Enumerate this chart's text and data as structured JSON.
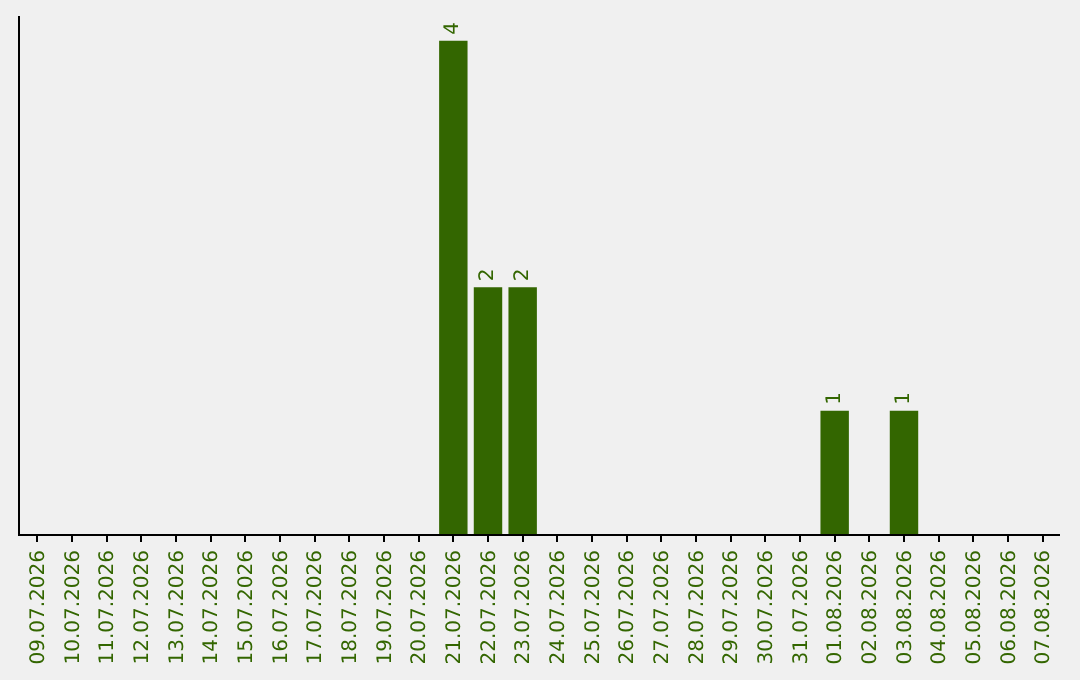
{
  "chart_data": {
    "type": "bar",
    "categories": [
      "09.07.2026",
      "10.07.2026",
      "11.07.2026",
      "12.07.2026",
      "13.07.2026",
      "14.07.2026",
      "15.07.2026",
      "16.07.2026",
      "17.07.2026",
      "18.07.2026",
      "19.07.2026",
      "20.07.2026",
      "21.07.2026",
      "22.07.2026",
      "23.07.2026",
      "24.07.2026",
      "25.07.2026",
      "26.07.2026",
      "27.07.2026",
      "28.07.2026",
      "29.07.2026",
      "30.07.2026",
      "31.07.2026",
      "01.08.2026",
      "02.08.2026",
      "03.08.2026",
      "04.08.2026",
      "05.08.2026",
      "06.08.2026",
      "07.08.2026"
    ],
    "values": [
      null,
      null,
      null,
      null,
      null,
      null,
      null,
      null,
      null,
      null,
      null,
      null,
      4,
      2,
      2,
      null,
      null,
      null,
      null,
      null,
      null,
      null,
      null,
      1,
      null,
      1,
      null,
      null,
      null,
      null
    ],
    "value_labels": [
      null,
      null,
      null,
      null,
      null,
      null,
      null,
      null,
      null,
      null,
      null,
      null,
      "4",
      "2",
      "2",
      null,
      null,
      null,
      null,
      null,
      null,
      null,
      null,
      "1",
      null,
      "1",
      null,
      null,
      null,
      null
    ],
    "color": "#336600",
    "ylim": [
      0,
      4.2
    ],
    "grid": false,
    "tick_labels": "x"
  }
}
